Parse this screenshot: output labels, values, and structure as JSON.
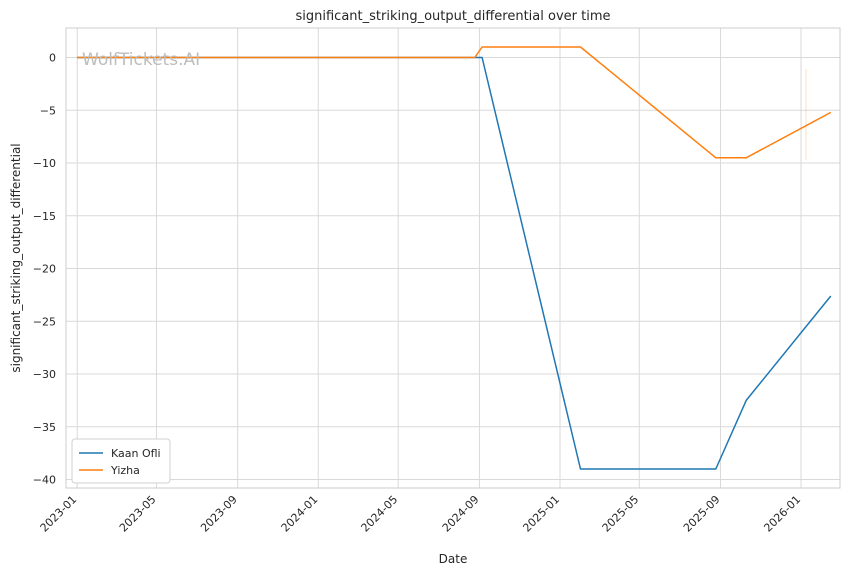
{
  "watermark": "WolfTickets.AI",
  "colors": {
    "series_1": "#1f77b4",
    "series_2": "#ff7f0e",
    "grid": "#d9d9d9"
  },
  "chart_data": {
    "type": "line",
    "title": "significant_striking_output_differential over time",
    "xlabel": "Date",
    "ylabel": "significant_striking_output_differential",
    "x_tick_labels": [
      "2023-01",
      "2023-05",
      "2023-09",
      "2024-01",
      "2024-05",
      "2024-09",
      "2025-01",
      "2025-05",
      "2025-09",
      "2026-01"
    ],
    "y_ticks": [
      0,
      -5,
      -10,
      -15,
      -20,
      -25,
      -30,
      -35,
      -40
    ],
    "ylim": [
      -40.8,
      2.8
    ],
    "xlim": [
      "2022-12-15",
      "2026-03-01"
    ],
    "grid": true,
    "legend_position": "lower-left",
    "series": [
      {
        "name": "Kaan Ofli",
        "color": "#1f77b4",
        "points": [
          [
            "2023-01-01",
            0
          ],
          [
            "2024-08-30",
            0
          ],
          [
            "2024-09-05",
            0
          ],
          [
            "2025-02-01",
            -39
          ],
          [
            "2025-08-25",
            -39
          ],
          [
            "2025-10-10",
            -32.5
          ],
          [
            "2026-02-15",
            -22.6
          ]
        ]
      },
      {
        "name": "Yizha",
        "color": "#ff7f0e",
        "points": [
          [
            "2023-01-01",
            0
          ],
          [
            "2024-08-25",
            0
          ],
          [
            "2024-09-05",
            1
          ],
          [
            "2025-02-01",
            1
          ],
          [
            "2025-08-25",
            -9.5
          ],
          [
            "2025-10-10",
            -9.5
          ],
          [
            "2026-02-15",
            -5.2
          ]
        ]
      }
    ]
  }
}
